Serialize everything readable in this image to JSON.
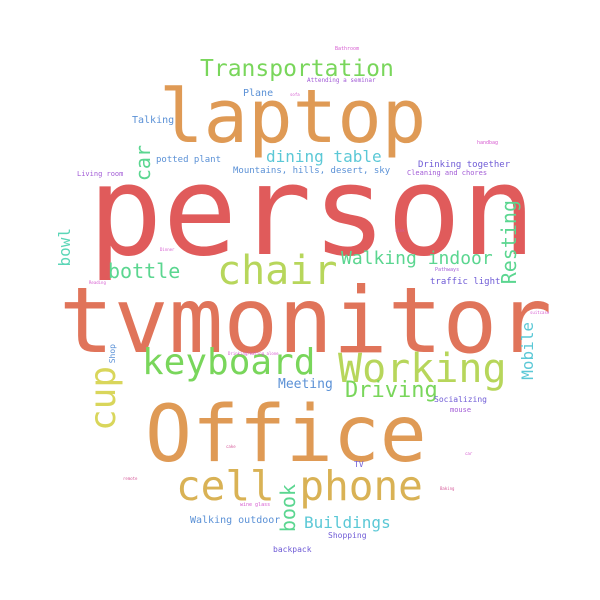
{
  "words": {
    "person": "person",
    "tvmonitor": "tvmonitor",
    "office": "Office",
    "laptop": "laptop",
    "cell_phone": "cell phone",
    "chair": "chair",
    "keyboard": "keyboard",
    "working": "Working",
    "cup": "cup",
    "transportation": "Transportation",
    "dining_table": "dining table",
    "driving": "Driving",
    "walking_indoor": "Walking indoor",
    "bottle": "bottle",
    "book": "book",
    "resting": "Resting",
    "buildings": "Buildings",
    "car": "car",
    "bowl": "bowl",
    "mobile": "Mobile",
    "meeting": "Meeting",
    "walking_outdoor": "Walking outdoor",
    "plane": "Plane",
    "talking": "Talking",
    "potted_plant": "potted plant",
    "mountains": "Mountains, hills, desert, sky",
    "drinking_together": "Drinking together",
    "cleaning": "Cleaning and chores",
    "living_room": "Living room",
    "traffic_light": "traffic light",
    "socializing": "Socializing",
    "mouse": "mouse",
    "tv": "TV",
    "shopping": "Shopping",
    "backpack": "backpack",
    "shop": "Shop",
    "bathroom": "Bathroom",
    "attending_seminar": "Attending a seminar",
    "sofa": "sofa",
    "handbag": "handbag",
    "sink": "sink",
    "pathways": "Pathways",
    "reading": "Reading",
    "dinner": "Dinner",
    "suitcase": "suitcase",
    "drinking_eating_alone": "Drinking/eating alone",
    "car_small": "car",
    "wine_glass": "wine glass",
    "baking": "Baking",
    "remote": "remote",
    "cake": "cake"
  },
  "colors": {
    "red": "#e05b5b",
    "orange": "#df9a55",
    "yellow": "#d9d65b",
    "green": "#79d65b",
    "cyan": "#5bc8d6",
    "purple": "#a25bd6"
  }
}
